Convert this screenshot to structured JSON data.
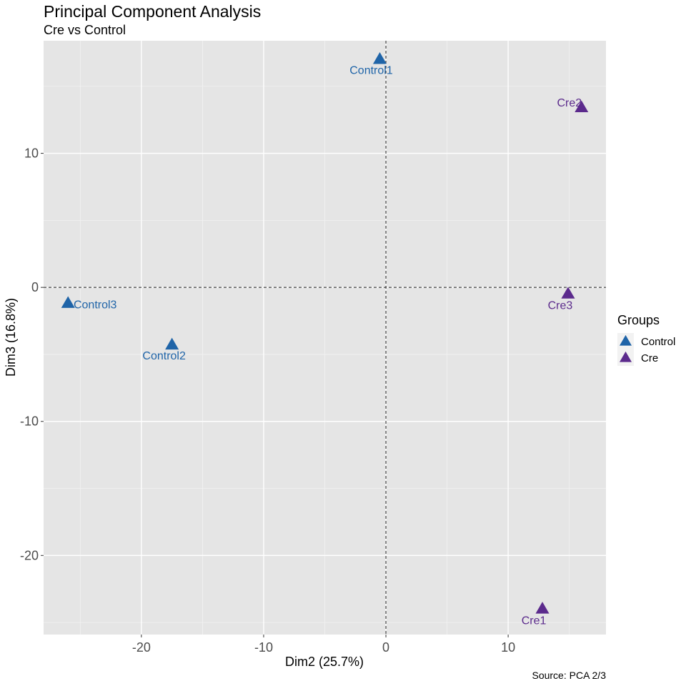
{
  "chart_data": {
    "type": "scatter",
    "title": "Principal Component Analysis",
    "subtitle": "Cre vs Control",
    "xlabel": "Dim2 (25.7%)",
    "ylabel": "Dim3 (16.8%)",
    "caption": "Source: PCA 2/3",
    "xlim": [
      -28,
      18
    ],
    "ylim": [
      -25.9,
      18.4
    ],
    "x_ticks": [
      -20,
      -10,
      0,
      10
    ],
    "y_ticks": [
      -20,
      -10,
      0,
      10
    ],
    "reference_lines": {
      "x": 0,
      "y": 0
    },
    "grid": true,
    "legend": {
      "title": "Groups",
      "position": "right",
      "entries": [
        {
          "name": "Control",
          "color": "#1f64a8"
        },
        {
          "name": "Cre",
          "color": "#5b2a8c"
        }
      ]
    },
    "series": [
      {
        "name": "Control",
        "color": "#1f64a8",
        "marker": "triangle",
        "points": [
          {
            "label": "Control1",
            "x": -0.5,
            "y": 17.0
          },
          {
            "label": "Control2",
            "x": -17.5,
            "y": -4.3
          },
          {
            "label": "Control3",
            "x": -26.0,
            "y": -1.2
          }
        ]
      },
      {
        "name": "Cre",
        "color": "#5b2a8c",
        "marker": "triangle",
        "points": [
          {
            "label": "Cre1",
            "x": 12.8,
            "y": -24.0
          },
          {
            "label": "Cre2",
            "x": 16.0,
            "y": 13.4
          },
          {
            "label": "Cre3",
            "x": 14.9,
            "y": -0.5
          }
        ]
      }
    ]
  }
}
